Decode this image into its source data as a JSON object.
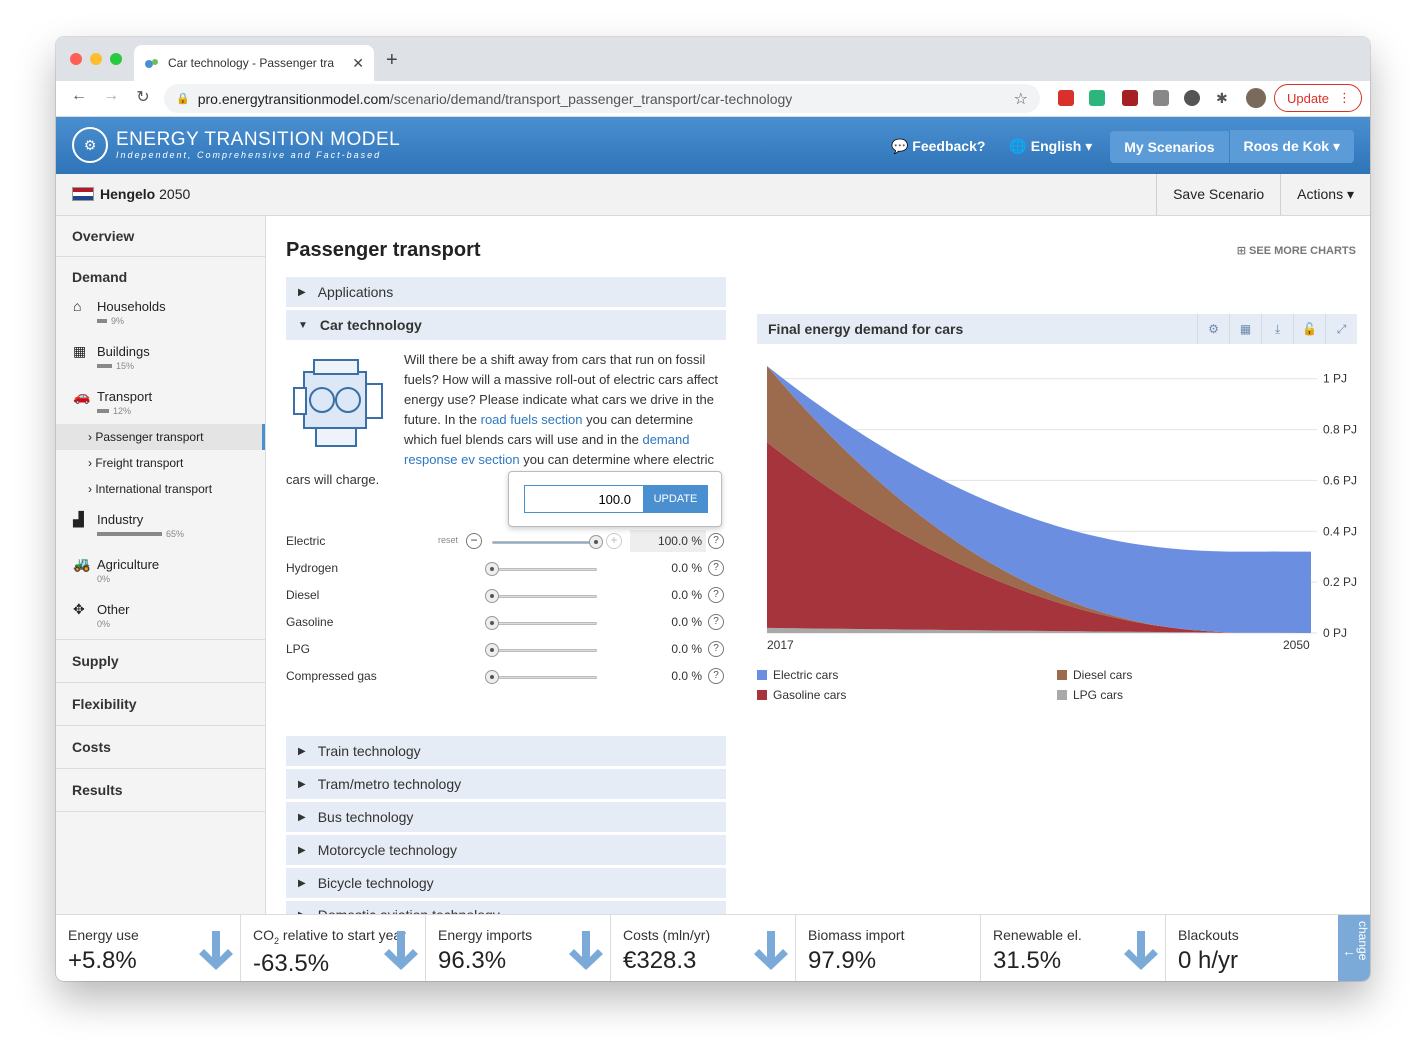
{
  "browser": {
    "tab_title": "Car technology - Passenger tra",
    "tab_close": "✕",
    "new_tab": "+",
    "url_host": "pro.energytransitionmodel.com",
    "url_path": "/scenario/demand/transport_passenger_transport/car-technology",
    "update_label": "Update"
  },
  "app": {
    "logo_title": "ENERGY TRANSITION MODEL",
    "logo_subtitle": "Independent, Comprehensive and Fact-based",
    "nav": {
      "feedback": "Feedback?",
      "language": "English",
      "my_scenarios": "My Scenarios",
      "user": "Roos de Kok"
    }
  },
  "scenario": {
    "region": "Hengelo",
    "year": "2050",
    "save_label": "Save Scenario",
    "actions_label": "Actions"
  },
  "sidebar": {
    "overview": "Overview",
    "demand": "Demand",
    "items": [
      {
        "label": "Households",
        "pct": "9%",
        "share": 0.09
      },
      {
        "label": "Buildings",
        "pct": "15%",
        "share": 0.15
      },
      {
        "label": "Transport",
        "pct": "12%",
        "share": 0.12
      }
    ],
    "transport_children": [
      "Passenger transport",
      "Freight transport",
      "International transport"
    ],
    "items2": [
      {
        "label": "Industry",
        "pct": "65%",
        "share": 0.65
      },
      {
        "label": "Agriculture",
        "pct": "0%",
        "share": 0
      },
      {
        "label": "Other",
        "pct": "0%",
        "share": 0
      }
    ],
    "supply": "Supply",
    "flexibility": "Flexibility",
    "costs": "Costs",
    "results": "Results"
  },
  "main": {
    "title": "Passenger transport",
    "see_more": "SEE MORE CHARTS",
    "acc_applications": "Applications",
    "acc_car_tech": "Car technology",
    "intro_1": "Will there be a shift away from cars that run on fossil fuels? How will a massive roll-out of electric cars affect energy use? Please indicate what cars we drive in the future. In the ",
    "intro_link1": "road fuels section",
    "intro_2": " you can determine which fuel blends cars will use and in the ",
    "intro_link2": "demand response ev section",
    "intro_3": " you can determine where electric cars will charge.",
    "reset_label": "reset",
    "popup_value": "100.0",
    "popup_button": "UPDATE",
    "sliders": [
      {
        "name": "Electric",
        "value": "100.0 %",
        "level": 1.0
      },
      {
        "name": "Hydrogen",
        "value": "0.0 %",
        "level": 0
      },
      {
        "name": "Diesel",
        "value": "0.0 %",
        "level": 0
      },
      {
        "name": "Gasoline",
        "value": "0.0 %",
        "level": 0
      },
      {
        "name": "LPG",
        "value": "0.0 %",
        "level": 0
      },
      {
        "name": "Compressed gas",
        "value": "0.0 %",
        "level": 0
      }
    ],
    "acc_more": [
      "Train technology",
      "Tram/metro technology",
      "Bus technology",
      "Motorcycle technology",
      "Bicycle technology",
      "Domestic aviation technology"
    ]
  },
  "chart_data": {
    "type": "area",
    "title": "Final energy demand for cars",
    "x": [
      2017,
      2050
    ],
    "x_tick_labels": [
      "2017",
      "2050"
    ],
    "y_tick_labels": [
      "0 PJ",
      "0.2 PJ",
      "0.4 PJ",
      "0.6 PJ",
      "0.8 PJ",
      "1 PJ"
    ],
    "ylim": [
      0,
      1.05
    ],
    "grid": true,
    "legend_position": "bottom",
    "series": [
      {
        "name": "LPG cars",
        "color": "#a9a9a9",
        "values": [
          0.02,
          0.0
        ]
      },
      {
        "name": "Gasoline cars",
        "color": "#a6343c",
        "values": [
          0.73,
          0.0
        ]
      },
      {
        "name": "Diesel cars",
        "color": "#9c6b4e",
        "values": [
          0.3,
          0.0
        ]
      },
      {
        "name": "Electric cars",
        "color": "#6c8ee0",
        "values": [
          0.0,
          0.32
        ]
      }
    ]
  },
  "footer": {
    "kpis": [
      {
        "label": "Energy use",
        "value": "+5.8%",
        "arrow": true
      },
      {
        "label_pre": "CO",
        "label_sub": "2",
        "label_post": " relative to start year",
        "value": "-63.5%",
        "arrow": true
      },
      {
        "label": "Energy imports",
        "value": "96.3%",
        "arrow": true
      },
      {
        "label": "Costs (mln/yr)",
        "value": "€328.3",
        "arrow": true
      },
      {
        "label": "Biomass import",
        "value": "97.9%",
        "arrow": false
      },
      {
        "label": "Renewable el.",
        "value": "31.5%",
        "arrow": true
      },
      {
        "label": "Blackouts",
        "value": "0 h/yr",
        "arrow": false
      }
    ],
    "change_label": "change"
  }
}
